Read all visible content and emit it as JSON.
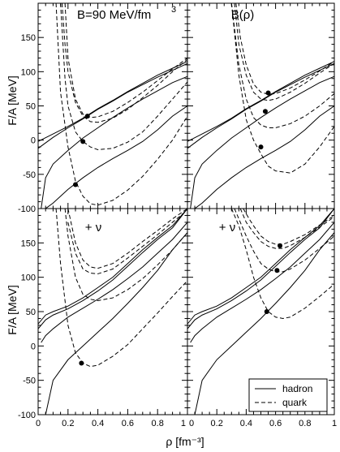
{
  "chart_data": {
    "type": "line",
    "shared_axes": {
      "xlabel": "ρ [fm⁻³]",
      "ylabel": "F/A [MeV]",
      "xlim": [
        0,
        1
      ],
      "ylim": [
        -100,
        200
      ],
      "x_ticks": [
        "0",
        "0.2",
        "0.4",
        "0.6",
        "0.8",
        "1"
      ],
      "y_ticks": [
        "-100",
        "-50",
        "0",
        "50",
        "100",
        "150"
      ]
    },
    "legend": {
      "position": "bottom-right of lower-right panel",
      "entries": [
        {
          "label": "hadron",
          "style": "solid"
        },
        {
          "label": "quark",
          "style": "dashed"
        }
      ]
    },
    "panels": [
      {
        "id": "top-left",
        "title": "B=90 MeV/fm",
        "title_superscript": "3",
        "series": [
          {
            "style": "solid",
            "x": [
              0.0,
              0.1,
              0.2,
              0.3,
              0.4,
              0.5,
              0.6,
              0.7,
              0.8,
              0.9,
              1.0
            ],
            "y": [
              -2,
              9,
              20,
              32,
              46,
              58,
              71,
              83,
              95,
              105,
              115
            ]
          },
          {
            "style": "solid",
            "x": [
              0.0,
              0.1,
              0.2,
              0.3,
              0.4,
              0.5,
              0.6,
              0.7,
              0.8,
              0.9,
              1.0
            ],
            "y": [
              -12,
              4,
              18,
              31,
              45,
              57,
              70,
              81,
              92,
              102,
              112
            ]
          },
          {
            "style": "solid",
            "x": [
              0.02,
              0.05,
              0.1,
              0.2,
              0.3,
              0.4,
              0.5,
              0.6,
              0.7,
              0.8,
              0.9,
              1.0
            ],
            "y": [
              -100,
              -55,
              -35,
              -15,
              3,
              18,
              33,
              47,
              60,
              72,
              84,
              93
            ]
          },
          {
            "style": "solid",
            "x": [
              0.05,
              0.1,
              0.2,
              0.3,
              0.4,
              0.5,
              0.6,
              0.7,
              0.8,
              0.9,
              1.0
            ],
            "y": [
              -100,
              -92,
              -72,
              -55,
              -40,
              -27,
              -15,
              -2,
              15,
              35,
              50
            ]
          },
          {
            "style": "dashed",
            "x": [
              0.18,
              0.2,
              0.25,
              0.3,
              0.35,
              0.4,
              0.5,
              0.6,
              0.7,
              0.8,
              0.9,
              1.0
            ],
            "y": [
              200,
              120,
              60,
              38,
              33,
              34,
              42,
              55,
              70,
              87,
              104,
              120
            ]
          },
          {
            "style": "dashed",
            "x": [
              0.16,
              0.18,
              0.2,
              0.25,
              0.3,
              0.35,
              0.4,
              0.5,
              0.6,
              0.7,
              0.8,
              0.9,
              1.0
            ],
            "y": [
              200,
              140,
              100,
              55,
              35,
              27,
              26,
              32,
              45,
              62,
              80,
              100,
              118
            ]
          },
          {
            "style": "dashed",
            "x": [
              0.15,
              0.18,
              0.2,
              0.25,
              0.3,
              0.35,
              0.4,
              0.5,
              0.6,
              0.7,
              0.8,
              0.9,
              1.0
            ],
            "y": [
              200,
              90,
              50,
              12,
              -2,
              -10,
              -14,
              -12,
              -3,
              12,
              35,
              60,
              85
            ]
          },
          {
            "style": "dashed",
            "x": [
              0.12,
              0.15,
              0.2,
              0.25,
              0.3,
              0.35,
              0.4,
              0.5,
              0.6,
              0.7,
              0.8,
              0.9,
              1.0
            ],
            "y": [
              200,
              70,
              -10,
              -60,
              -82,
              -93,
              -95,
              -88,
              -73,
              -53,
              -28,
              0,
              35
            ]
          }
        ],
        "markers": [
          {
            "x": 0.33,
            "y": 35
          },
          {
            "x": 0.3,
            "y": -2
          },
          {
            "x": 0.25,
            "y": -65
          }
        ]
      },
      {
        "id": "top-right",
        "title": "B(ρ)",
        "series": [
          {
            "style": "solid",
            "x": [
              0.0,
              0.1,
              0.2,
              0.3,
              0.4,
              0.5,
              0.6,
              0.7,
              0.8,
              0.9,
              1.0
            ],
            "y": [
              -2,
              9,
              20,
              32,
              46,
              58,
              71,
              83,
              95,
              105,
              115
            ]
          },
          {
            "style": "solid",
            "x": [
              0.0,
              0.1,
              0.2,
              0.3,
              0.4,
              0.5,
              0.6,
              0.7,
              0.8,
              0.9,
              1.0
            ],
            "y": [
              -12,
              4,
              18,
              31,
              45,
              57,
              70,
              81,
              92,
              102,
              112
            ]
          },
          {
            "style": "solid",
            "x": [
              0.02,
              0.05,
              0.1,
              0.2,
              0.3,
              0.4,
              0.5,
              0.6,
              0.7,
              0.8,
              0.9,
              1.0
            ],
            "y": [
              -100,
              -55,
              -35,
              -15,
              3,
              18,
              33,
              47,
              60,
              72,
              84,
              93
            ]
          },
          {
            "style": "solid",
            "x": [
              0.05,
              0.1,
              0.2,
              0.3,
              0.4,
              0.5,
              0.6,
              0.7,
              0.8,
              0.9,
              1.0
            ],
            "y": [
              -100,
              -92,
              -72,
              -55,
              -40,
              -27,
              -15,
              -2,
              15,
              35,
              50
            ]
          },
          {
            "style": "dashed",
            "x": [
              0.33,
              0.36,
              0.4,
              0.45,
              0.5,
              0.55,
              0.6,
              0.7,
              0.8,
              0.9,
              1.0
            ],
            "y": [
              200,
              150,
              110,
              82,
              70,
              67,
              68,
              76,
              88,
              101,
              115
            ]
          },
          {
            "style": "dashed",
            "x": [
              0.32,
              0.35,
              0.4,
              0.45,
              0.5,
              0.55,
              0.6,
              0.7,
              0.8,
              0.9,
              1.0
            ],
            "y": [
              200,
              140,
              95,
              70,
              60,
              58,
              60,
              70,
              83,
              98,
              112
            ]
          },
          {
            "style": "dashed",
            "x": [
              0.3,
              0.35,
              0.4,
              0.45,
              0.5,
              0.55,
              0.6,
              0.7,
              0.8,
              0.9,
              1.0
            ],
            "y": [
              200,
              110,
              60,
              33,
              22,
              18,
              18,
              24,
              35,
              50,
              68
            ]
          },
          {
            "style": "dashed",
            "x": [
              0.3,
              0.35,
              0.4,
              0.45,
              0.5,
              0.55,
              0.6,
              0.7,
              0.8,
              0.9,
              1.0
            ],
            "y": [
              200,
              95,
              30,
              0,
              -20,
              -38,
              -45,
              -48,
              -35,
              -10,
              20
            ]
          }
        ],
        "markers": [
          {
            "x": 0.55,
            "y": 69
          },
          {
            "x": 0.53,
            "y": 42
          },
          {
            "x": 0.5,
            "y": -10
          }
        ]
      },
      {
        "id": "bottom-left",
        "title": "+ ν",
        "series": [
          {
            "style": "solid",
            "x": [
              0.0,
              0.05,
              0.1,
              0.2,
              0.3,
              0.4,
              0.5,
              0.6,
              0.7,
              0.8,
              0.9,
              1.0
            ],
            "y": [
              32,
              45,
              50,
              58,
              70,
              85,
              100,
              120,
              140,
              158,
              175,
              200
            ]
          },
          {
            "style": "solid",
            "x": [
              0.0,
              0.05,
              0.1,
              0.2,
              0.3,
              0.4,
              0.5,
              0.6,
              0.7,
              0.8,
              0.9,
              1.0
            ],
            "y": [
              25,
              38,
              45,
              54,
              66,
              80,
              96,
              116,
              136,
              155,
              172,
              200
            ]
          },
          {
            "style": "solid",
            "x": [
              0.02,
              0.05,
              0.1,
              0.2,
              0.3,
              0.4,
              0.5,
              0.6,
              0.7,
              0.8,
              0.9,
              1.0
            ],
            "y": [
              5,
              15,
              25,
              42,
              55,
              68,
              82,
              98,
              115,
              135,
              155,
              180
            ]
          },
          {
            "style": "solid",
            "x": [
              0.05,
              0.1,
              0.2,
              0.3,
              0.4,
              0.5,
              0.6,
              0.7,
              0.8,
              0.9,
              1.0
            ],
            "y": [
              -100,
              -50,
              -20,
              0,
              20,
              40,
              62,
              85,
              110,
              140,
              165
            ]
          },
          {
            "style": "dashed",
            "x": [
              0.2,
              0.25,
              0.3,
              0.35,
              0.4,
              0.5,
              0.6,
              0.7,
              0.8,
              0.9,
              1.0
            ],
            "y": [
              200,
              150,
              125,
              115,
              113,
              120,
              135,
              152,
              168,
              185,
              200
            ]
          },
          {
            "style": "dashed",
            "x": [
              0.2,
              0.25,
              0.3,
              0.35,
              0.4,
              0.5,
              0.6,
              0.7,
              0.8,
              0.9,
              1.0
            ],
            "y": [
              180,
              135,
              112,
              106,
              105,
              112,
              128,
              145,
              162,
              180,
              198
            ]
          },
          {
            "style": "dashed",
            "x": [
              0.18,
              0.2,
              0.25,
              0.3,
              0.35,
              0.4,
              0.5,
              0.6,
              0.7,
              0.8,
              0.9,
              1.0
            ],
            "y": [
              200,
              160,
              100,
              75,
              68,
              66,
              70,
              82,
              98,
              118,
              140,
              165
            ]
          },
          {
            "style": "dashed",
            "x": [
              0.12,
              0.15,
              0.2,
              0.25,
              0.3,
              0.35,
              0.4,
              0.5,
              0.6,
              0.7,
              0.8,
              0.9,
              1.0
            ],
            "y": [
              200,
              120,
              30,
              -10,
              -25,
              -30,
              -28,
              -15,
              2,
              25,
              48,
              72,
              95
            ]
          }
        ],
        "markers": [
          {
            "x": 0.29,
            "y": -25
          }
        ]
      },
      {
        "id": "bottom-right",
        "title": "+ ν",
        "series": [
          {
            "style": "solid",
            "x": [
              0.0,
              0.05,
              0.1,
              0.2,
              0.3,
              0.4,
              0.5,
              0.6,
              0.7,
              0.8,
              0.9,
              1.0
            ],
            "y": [
              32,
              45,
              50,
              58,
              70,
              85,
              100,
              120,
              140,
              158,
              175,
              200
            ]
          },
          {
            "style": "solid",
            "x": [
              0.0,
              0.05,
              0.1,
              0.2,
              0.3,
              0.4,
              0.5,
              0.6,
              0.7,
              0.8,
              0.9,
              1.0
            ],
            "y": [
              25,
              38,
              45,
              54,
              66,
              80,
              96,
              116,
              136,
              155,
              172,
              200
            ]
          },
          {
            "style": "solid",
            "x": [
              0.02,
              0.05,
              0.1,
              0.2,
              0.3,
              0.4,
              0.5,
              0.6,
              0.7,
              0.8,
              0.9,
              1.0
            ],
            "y": [
              5,
              15,
              25,
              42,
              55,
              68,
              82,
              98,
              115,
              135,
              155,
              180
            ]
          },
          {
            "style": "solid",
            "x": [
              0.05,
              0.1,
              0.2,
              0.3,
              0.4,
              0.5,
              0.6,
              0.7,
              0.8,
              0.9,
              1.0
            ],
            "y": [
              -100,
              -50,
              -20,
              0,
              20,
              40,
              62,
              85,
              110,
              140,
              165
            ]
          },
          {
            "style": "dashed",
            "x": [
              0.38,
              0.42,
              0.45,
              0.5,
              0.55,
              0.6,
              0.65,
              0.7,
              0.8,
              0.9,
              1.0
            ],
            "y": [
              200,
              185,
              175,
              160,
              152,
              148,
              148,
              152,
              162,
              176,
              190
            ]
          },
          {
            "style": "dashed",
            "x": [
              0.36,
              0.4,
              0.45,
              0.5,
              0.55,
              0.6,
              0.65,
              0.7,
              0.8,
              0.9,
              1.0
            ],
            "y": [
              200,
              180,
              165,
              152,
              145,
              142,
              142,
              146,
              158,
              173,
              188
            ]
          },
          {
            "style": "dashed",
            "x": [
              0.32,
              0.35,
              0.4,
              0.45,
              0.5,
              0.55,
              0.6,
              0.65,
              0.7,
              0.8,
              0.9,
              1.0
            ],
            "y": [
              200,
              185,
              160,
              138,
              120,
              112,
              108,
              108,
              112,
              125,
              142,
              160
            ]
          },
          {
            "style": "dashed",
            "x": [
              0.3,
              0.35,
              0.4,
              0.45,
              0.5,
              0.55,
              0.6,
              0.65,
              0.7,
              0.8,
              0.9,
              1.0
            ],
            "y": [
              200,
              175,
              140,
              100,
              70,
              50,
              42,
              40,
              42,
              55,
              72,
              90
            ]
          }
        ],
        "markers": [
          {
            "x": 0.63,
            "y": 146
          },
          {
            "x": 0.61,
            "y": 110
          },
          {
            "x": 0.54,
            "y": 50
          }
        ]
      }
    ]
  }
}
